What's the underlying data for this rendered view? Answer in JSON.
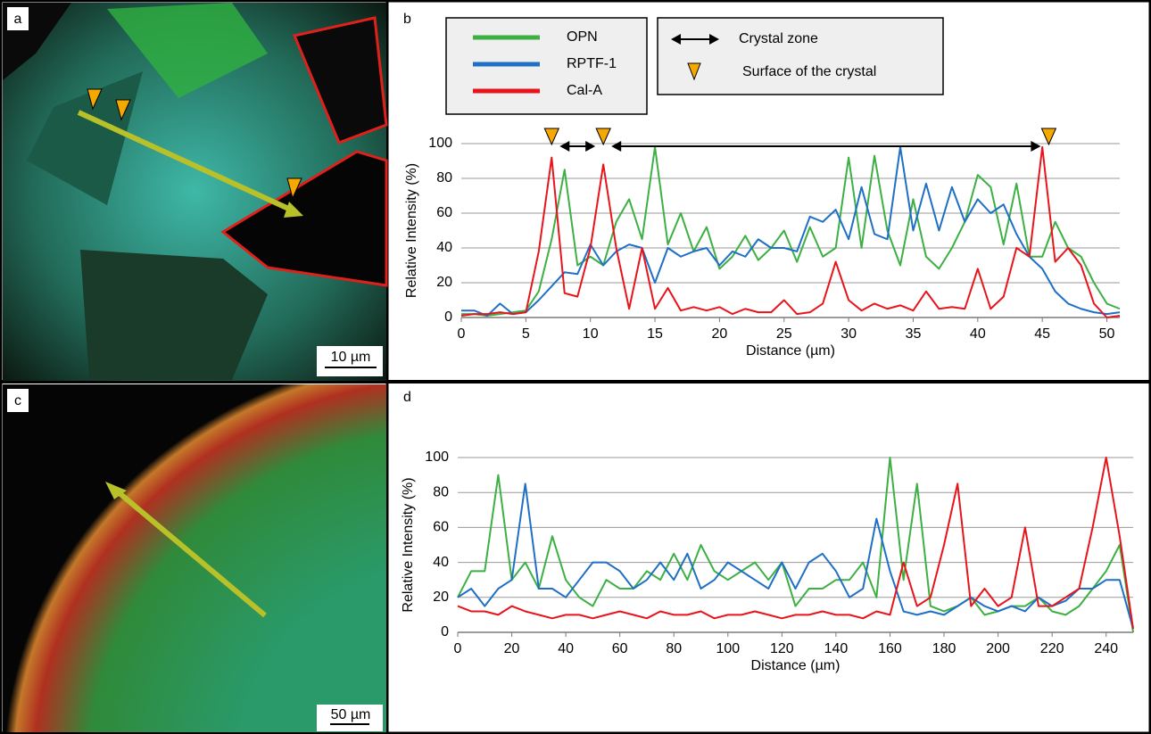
{
  "panel_labels": [
    "a",
    "b",
    "c",
    "d"
  ],
  "scale_bars": [
    "10 µm",
    "50 µm"
  ],
  "chart_data": [
    {
      "type": "line",
      "ylabel": "Relative Intensity (%)",
      "xlabel": "Distance (µm)",
      "x": [
        0,
        1,
        2,
        3,
        4,
        5,
        6,
        7,
        8,
        9,
        10,
        11,
        12,
        13,
        14,
        15,
        16,
        17,
        18,
        19,
        20,
        21,
        22,
        23,
        24,
        25,
        26,
        27,
        28,
        29,
        30,
        31,
        32,
        33,
        34,
        35,
        36,
        37,
        38,
        39,
        40,
        41,
        42,
        43,
        44,
        45,
        46,
        47,
        48,
        49,
        50,
        51
      ],
      "series": [
        {
          "name": "OPN",
          "color": "#3cb043",
          "values": [
            2,
            2,
            1,
            2,
            3,
            4,
            15,
            45,
            85,
            30,
            35,
            30,
            55,
            68,
            45,
            98,
            42,
            60,
            38,
            52,
            28,
            35,
            47,
            33,
            40,
            50,
            32,
            52,
            35,
            40,
            92,
            40,
            93,
            50,
            30,
            68,
            35,
            28,
            40,
            55,
            82,
            75,
            42,
            77,
            35,
            35,
            55,
            40,
            35,
            20,
            8,
            5
          ]
        },
        {
          "name": "RPTF-1",
          "color": "#1f6fc5",
          "values": [
            4,
            4,
            1,
            8,
            2,
            3,
            10,
            18,
            26,
            25,
            42,
            30,
            38,
            42,
            40,
            20,
            40,
            35,
            38,
            40,
            30,
            38,
            35,
            45,
            40,
            40,
            38,
            58,
            55,
            62,
            45,
            75,
            48,
            45,
            98,
            50,
            77,
            50,
            75,
            55,
            68,
            60,
            65,
            48,
            35,
            28,
            15,
            8,
            5,
            3,
            2,
            3
          ]
        },
        {
          "name": "Cal-A",
          "color": "#e8141b",
          "values": [
            1,
            2,
            2,
            3,
            2,
            3,
            38,
            92,
            14,
            12,
            40,
            88,
            40,
            5,
            40,
            5,
            17,
            4,
            6,
            4,
            6,
            2,
            5,
            3,
            3,
            10,
            2,
            3,
            8,
            32,
            10,
            4,
            8,
            5,
            7,
            4,
            15,
            5,
            6,
            5,
            28,
            5,
            12,
            40,
            35,
            98,
            32,
            40,
            30,
            8,
            0,
            1
          ]
        }
      ],
      "xlim": [
        0,
        51
      ],
      "ylim": [
        0,
        100
      ],
      "xticks": [
        0,
        5,
        10,
        15,
        20,
        25,
        30,
        35,
        40,
        45,
        50
      ],
      "yticks": [
        0,
        20,
        40,
        60,
        80,
        100
      ],
      "grid": true,
      "annotations": {
        "crystal_zone_label": "Crystal zone",
        "surface_label": "Surface of  the crystal",
        "surface_x": [
          7,
          11,
          45.5
        ],
        "marker_color": "#f5a800"
      }
    },
    {
      "type": "line",
      "ylabel": "Relative Intensity (%)",
      "xlabel": "Distance (µm)",
      "x": [
        0,
        5,
        10,
        15,
        20,
        25,
        30,
        35,
        40,
        45,
        50,
        55,
        60,
        65,
        70,
        75,
        80,
        85,
        90,
        95,
        100,
        105,
        110,
        115,
        120,
        125,
        130,
        135,
        140,
        145,
        150,
        155,
        160,
        165,
        170,
        175,
        180,
        185,
        190,
        195,
        200,
        205,
        210,
        215,
        220,
        225,
        230,
        235,
        240,
        245,
        250
      ],
      "series": [
        {
          "color": "#3cb043",
          "values": [
            20,
            35,
            35,
            90,
            30,
            40,
            25,
            55,
            30,
            20,
            15,
            30,
            25,
            25,
            35,
            30,
            45,
            30,
            50,
            35,
            30,
            35,
            40,
            30,
            40,
            15,
            25,
            25,
            30,
            30,
            40,
            20,
            100,
            30,
            85,
            15,
            12,
            15,
            20,
            10,
            12,
            15,
            15,
            20,
            12,
            10,
            15,
            25,
            35,
            50,
            0
          ]
        },
        {
          "color": "#1f6fc5",
          "values": [
            20,
            25,
            15,
            25,
            30,
            85,
            25,
            25,
            20,
            30,
            40,
            40,
            35,
            25,
            30,
            40,
            30,
            45,
            25,
            30,
            40,
            35,
            30,
            25,
            40,
            25,
            40,
            45,
            35,
            20,
            25,
            65,
            35,
            12,
            10,
            12,
            10,
            15,
            20,
            15,
            12,
            15,
            12,
            20,
            15,
            18,
            25,
            25,
            30,
            30,
            2
          ]
        },
        {
          "color": "#e8141b",
          "values": [
            15,
            12,
            12,
            10,
            15,
            12,
            10,
            8,
            10,
            10,
            8,
            10,
            12,
            10,
            8,
            12,
            10,
            10,
            12,
            8,
            10,
            10,
            12,
            10,
            8,
            10,
            10,
            12,
            10,
            10,
            8,
            12,
            10,
            40,
            15,
            20,
            50,
            85,
            15,
            25,
            15,
            20,
            60,
            15,
            15,
            20,
            25,
            60,
            100,
            55,
            2
          ]
        }
      ],
      "xlim": [
        0,
        250
      ],
      "ylim": [
        0,
        100
      ],
      "xticks": [
        0,
        20,
        40,
        60,
        80,
        100,
        120,
        140,
        160,
        180,
        200,
        220,
        240
      ],
      "yticks": [
        0,
        20,
        40,
        60,
        80,
        100
      ],
      "grid": true
    }
  ]
}
